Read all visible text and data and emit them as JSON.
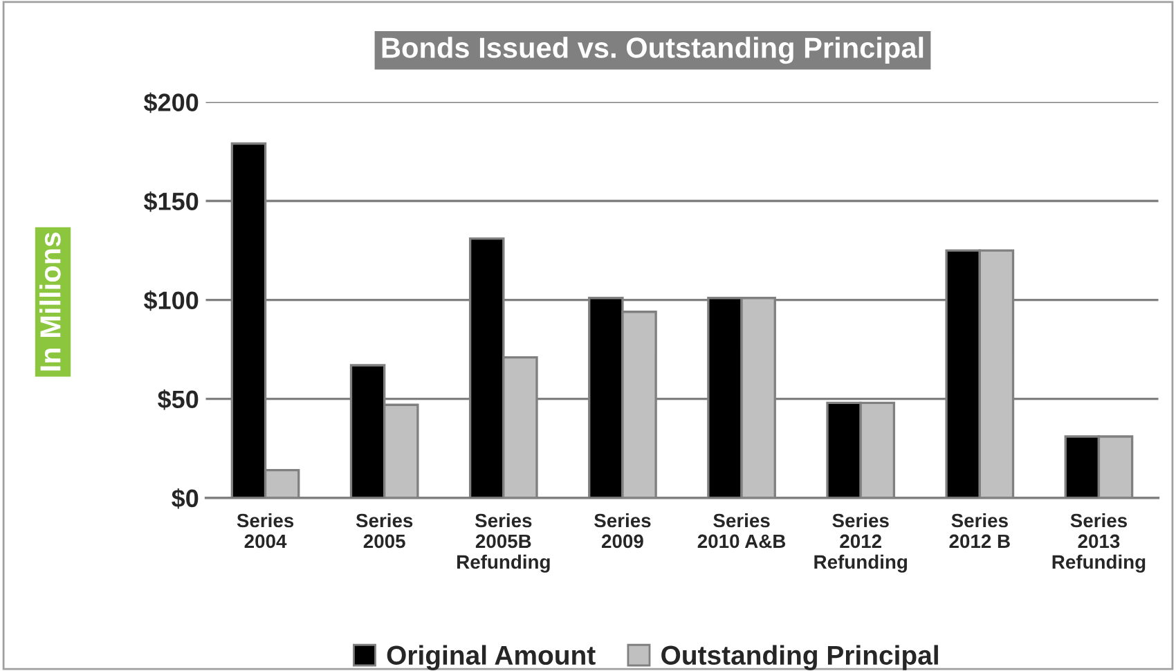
{
  "chart_data": {
    "type": "bar",
    "title": "Bonds Issued vs. Outstanding Principal",
    "ylabel": "In Millions",
    "categories": [
      "Series\n2004",
      "Series\n2005",
      "Series\n2005B\nRefunding",
      "Series\n2009",
      "Series\n2010 A&B",
      "Series\n2012\nRefunding",
      "Series\n2012 B",
      "Series\n2013\nRefunding"
    ],
    "series": [
      {
        "name": "Original Amount",
        "color": "#000000",
        "values": [
          179,
          67,
          131,
          101,
          101,
          48,
          125,
          31
        ]
      },
      {
        "name": "Outstanding Principal",
        "color": "#c0c0c0",
        "values": [
          14,
          47,
          71,
          94,
          101,
          48,
          125,
          31
        ]
      }
    ],
    "ylim": [
      0,
      200
    ],
    "yticks": [
      {
        "value": 0,
        "label": "$0"
      },
      {
        "value": 50,
        "label": "$50"
      },
      {
        "value": 100,
        "label": "$100"
      },
      {
        "value": 150,
        "label": "$150"
      },
      {
        "value": 200,
        "label": "$200"
      }
    ],
    "grid": "y",
    "legend": "bottom"
  }
}
